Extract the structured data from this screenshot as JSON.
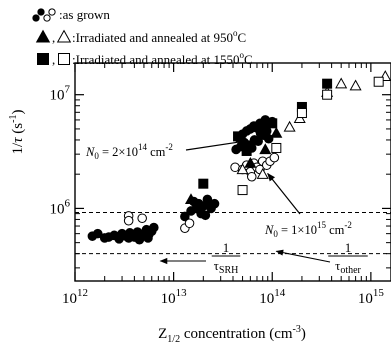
{
  "colors": {
    "ink": "#000000",
    "background": "#ffffff"
  },
  "legend": [
    {
      "label": "●, ○ :as grown",
      "text": ":as grown",
      "markers": [
        "filled-circle",
        "open-circle"
      ]
    },
    {
      "label": "▲, △ :Irradiated and annealed at 950°C",
      "text": ":Irradiated and annealed at 950°C",
      "markers": [
        "filled-triangle",
        "open-triangle"
      ]
    },
    {
      "label": "■, □ :Irradiated and annealed at 1550°C",
      "text": ":Irradiated and annealed at 1550°C",
      "markers": [
        "filled-square",
        "open-square"
      ]
    }
  ],
  "chart_data": {
    "type": "scatter",
    "x_scale": "log",
    "y_scale": "log",
    "xlabel": "Z1/2 concentration (cm-3)",
    "ylabel": "1/τ (s-1)",
    "xlim": [
      1000000000000.0,
      1600000000000000.0
    ],
    "ylim": [
      230000.0,
      19000000.0
    ],
    "x_ticks": [
      {
        "value": 1000000000000.0,
        "label": "10^12"
      },
      {
        "value": 10000000000000.0,
        "label": "10^13"
      },
      {
        "value": 100000000000000.0,
        "label": "10^14"
      },
      {
        "value": 1000000000000000.0,
        "label": "10^15"
      }
    ],
    "y_ticks": [
      {
        "value": 1000000.0,
        "label": "10^6"
      },
      {
        "value": 10000000.0,
        "label": "10^7"
      }
    ],
    "series": [
      {
        "name": "as grown",
        "marker": "filled-circle",
        "points": [
          [
            1500000000000.0,
            570000.0
          ],
          [
            1700000000000.0,
            600000.0
          ],
          [
            2000000000000.0,
            550000.0
          ],
          [
            2200000000000.0,
            560000.0
          ],
          [
            2500000000000.0,
            580000.0
          ],
          [
            2800000000000.0,
            540000.0
          ],
          [
            3000000000000.0,
            600000.0
          ],
          [
            3300000000000.0,
            570000.0
          ],
          [
            3500000000000.0,
            550000.0
          ],
          [
            3800000000000.0,
            590000.0
          ],
          [
            4000000000000.0,
            560000.0
          ],
          [
            4300000000000.0,
            620000.0
          ],
          [
            4600000000000.0,
            580000.0
          ],
          [
            5000000000000.0,
            600000.0
          ],
          [
            5300000000000.0,
            650000.0
          ],
          [
            5600000000000.0,
            590000.0
          ],
          [
            6000000000000.0,
            630000.0
          ],
          [
            6300000000000.0,
            680000.0
          ],
          [
            4500000000000.0,
            530000.0
          ],
          [
            5500000000000.0,
            550000.0
          ],
          [
            3600000000000.0,
            610000.0
          ],
          [
            13000000000000.0,
            850000.0
          ],
          [
            15000000000000.0,
            950000.0
          ],
          [
            17000000000000.0,
            1000000.0
          ],
          [
            18000000000000.0,
            1100000.0
          ],
          [
            20000000000000.0,
            1050000.0
          ],
          [
            22000000000000.0,
            1200000.0
          ],
          [
            24000000000000.0,
            1000000.0
          ],
          [
            16000000000000.0,
            1150000.0
          ],
          [
            19000000000000.0,
            900000.0
          ],
          [
            21000000000000.0,
            870000.0
          ],
          [
            26000000000000.0,
            1100000.0
          ],
          [
            45000000000000.0,
            4200000.0
          ],
          [
            50000000000000.0,
            4500000.0
          ],
          [
            55000000000000.0,
            4800000.0
          ],
          [
            60000000000000.0,
            5000000.0
          ],
          [
            65000000000000.0,
            5300000.0
          ],
          [
            70000000000000.0,
            5100000.0
          ],
          [
            75000000000000.0,
            5600000.0
          ],
          [
            80000000000000.0,
            5200000.0
          ],
          [
            85000000000000.0,
            6000000.0
          ],
          [
            90000000000000.0,
            5500000.0
          ],
          [
            100000000000000.0,
            5800000.0
          ],
          [
            52000000000000.0,
            3800000.0
          ],
          [
            48000000000000.0,
            3500000.0
          ],
          [
            58000000000000.0,
            3600000.0
          ],
          [
            66000000000000.0,
            4000000.0
          ],
          [
            72000000000000.0,
            3900000.0
          ],
          [
            82000000000000.0,
            4400000.0
          ],
          [
            92000000000000.0,
            4100000.0
          ],
          [
            43000000000000.0,
            3300000.0
          ],
          [
            62000000000000.0,
            3400000.0
          ],
          [
            76000000000000.0,
            4600000.0
          ],
          [
            88000000000000.0,
            4800000.0
          ]
        ]
      },
      {
        "name": "as grown",
        "marker": "open-circle",
        "points": [
          [
            3500000000000.0,
            860000.0
          ],
          [
            3500000000000.0,
            780000.0
          ],
          [
            4800000000000.0,
            820000.0
          ],
          [
            13000000000000.0,
            670000.0
          ],
          [
            14500000000000.0,
            740000.0
          ],
          [
            42000000000000.0,
            2300000.0
          ],
          [
            50000000000000.0,
            2200000.0
          ],
          [
            55000000000000.0,
            2400000.0
          ],
          [
            60000000000000.0,
            2100000.0
          ],
          [
            65000000000000.0,
            2500000.0
          ],
          [
            70000000000000.0,
            2300000.0
          ],
          [
            75000000000000.0,
            2200000.0
          ],
          [
            80000000000000.0,
            2600000.0
          ],
          [
            88000000000000.0,
            2400000.0
          ],
          [
            95000000000000.0,
            2600000.0
          ],
          [
            105000000000000.0,
            2800000.0
          ],
          [
            62000000000000.0,
            1900000.0
          ]
        ]
      },
      {
        "name": "Irradiated and annealed at 950°C",
        "marker": "filled-triangle",
        "points": [
          [
            15000000000000.0,
            1200000.0
          ],
          [
            22000000000000.0,
            1150000.0
          ],
          [
            60000000000000.0,
            2500000.0
          ],
          [
            85000000000000.0,
            3300000.0
          ],
          [
            110000000000000.0,
            4600000.0
          ]
        ]
      },
      {
        "name": "Irradiated and annealed at 950°C",
        "marker": "open-triangle",
        "points": [
          [
            50000000000000.0,
            2200000.0
          ],
          [
            80000000000000.0,
            2000000.0
          ],
          [
            150000000000000.0,
            5200000.0
          ],
          [
            190000000000000.0,
            6200000.0
          ],
          [
            360000000000000.0,
            10500000.0
          ],
          [
            500000000000000.0,
            12500000.0
          ],
          [
            700000000000000.0,
            12000000.0
          ],
          [
            1400000000000000.0,
            14500000.0
          ]
        ]
      },
      {
        "name": "Irradiated and annealed at 1550°C",
        "marker": "filled-square",
        "points": [
          [
            20000000000000.0,
            1650000.0
          ],
          [
            45000000000000.0,
            4300000.0
          ],
          [
            55000000000000.0,
            3200000.0
          ],
          [
            100000000000000.0,
            5600000.0
          ],
          [
            200000000000000.0,
            7800000.0
          ],
          [
            360000000000000.0,
            12500000.0
          ]
        ]
      },
      {
        "name": "Irradiated and annealed at 1550°C",
        "marker": "open-square",
        "points": [
          [
            50000000000000.0,
            1450000.0
          ],
          [
            110000000000000.0,
            3400000.0
          ],
          [
            200000000000000.0,
            6900000.0
          ],
          [
            360000000000000.0,
            10000000.0
          ],
          [
            1200000000000000.0,
            13000000.0
          ]
        ]
      }
    ],
    "fit_curves": [
      {
        "label": "N0 = 2×10^14 cm-2",
        "style": "solid",
        "slope_per_Z": 0.133,
        "offset": 920000.0,
        "span": [
          1000000000000.0,
          1600000000000000.0
        ]
      },
      {
        "label": "N0 = 1×10^15 cm-2",
        "style": "solid",
        "slope_per_Z": 0.042,
        "offset": 400000.0,
        "span": [
          1000000000000.0,
          1600000000000000.0
        ]
      }
    ],
    "reference_lines": [
      {
        "name": "1/τother",
        "style": "dashed",
        "orientation": "horizontal",
        "value": 920000.0
      },
      {
        "name": "1/τother",
        "style": "dashed",
        "orientation": "horizontal",
        "value": 400000.0
      },
      {
        "name": "1/τSRH",
        "style": "dashed",
        "orientation": "linear",
        "slope_per_Z": 0.133,
        "span": [
          1500000000000.0,
          1600000000000000.0
        ]
      },
      {
        "name": "1/τSRH",
        "style": "dashed",
        "orientation": "linear",
        "slope_per_Z": 0.042,
        "span": [
          4000000000000.0,
          1600000000000000.0
        ]
      }
    ],
    "annotations": [
      {
        "text": "N0 = 2×10^14 cm-2",
        "points_to": [
          60000000000000.0,
          4000000.0
        ]
      },
      {
        "text": "N0 = 1×10^15 cm-2",
        "points_to": [
          80000000000000.0,
          2200000.0
        ]
      },
      {
        "text": "1/τSRH",
        "points_to": [
          7000000000000.0,
          620000.0
        ]
      },
      {
        "text": "1/τother",
        "points_to": [
          110000000000000.0,
          420000.0
        ]
      }
    ]
  }
}
